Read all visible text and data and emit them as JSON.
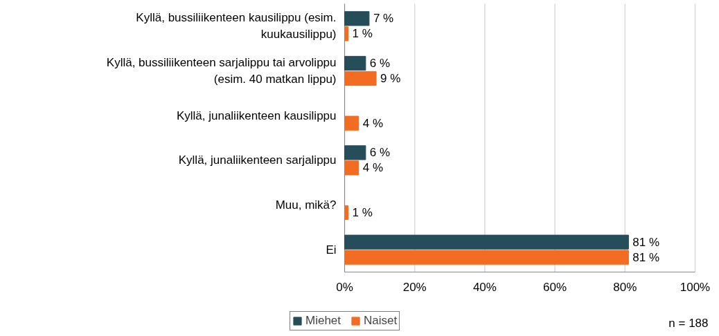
{
  "chart_data": {
    "type": "bar",
    "orientation": "horizontal",
    "categories": [
      "Kyllä, bussiliikenteen kausilippu (esim.\nkuukausilippu)",
      "Kyllä, bussiliikenteen sarjalippu tai arvolippu\n(esim. 40 matkan lippu)",
      "Kyllä, junaliikenteen kausilippu",
      "Kyllä, junaliikenteen sarjalippu",
      "Muu, mikä?",
      "Ei"
    ],
    "series": [
      {
        "name": "Miehet",
        "color": "#264d5a",
        "values": [
          7,
          6,
          null,
          6,
          null,
          81
        ],
        "value_labels": [
          "7 %",
          "6 %",
          null,
          "6 %",
          null,
          "81 %"
        ]
      },
      {
        "name": "Naiset",
        "color": "#f26c22",
        "values": [
          1,
          9,
          4,
          4,
          1,
          81
        ],
        "value_labels": [
          "1 %",
          "9 %",
          "4 %",
          "4 %",
          "1 %",
          "81 %"
        ]
      }
    ],
    "xlim": [
      0,
      100
    ],
    "xticks": [
      {
        "value": 0,
        "label": "0%"
      },
      {
        "value": 20,
        "label": "20%"
      },
      {
        "value": 40,
        "label": "40%"
      },
      {
        "value": 60,
        "label": "60%"
      },
      {
        "value": 80,
        "label": "80%"
      },
      {
        "value": 100,
        "label": "100%"
      }
    ],
    "grid": "x",
    "legend": "bottom",
    "annotations": [
      "n = 188"
    ]
  }
}
